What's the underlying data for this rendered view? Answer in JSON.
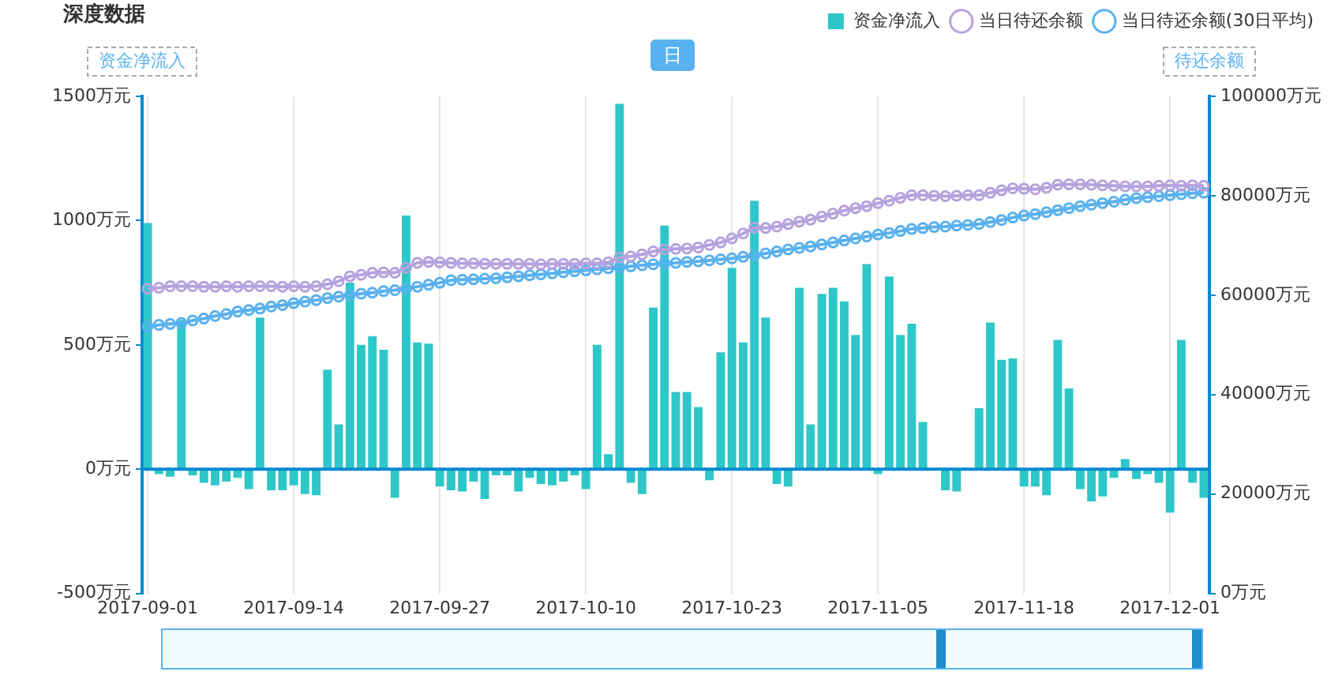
{
  "chart_data": {
    "type": "bar",
    "title": "深度数据",
    "ylabel": "资金净流入",
    "y2label": "待还余额",
    "annotations": [
      "日"
    ],
    "categories": [
      "2017-09-01",
      null,
      null,
      null,
      null,
      null,
      null,
      null,
      null,
      null,
      null,
      null,
      null,
      "2017-09-14",
      null,
      null,
      null,
      null,
      null,
      null,
      null,
      null,
      null,
      null,
      null,
      null,
      "2017-09-27",
      null,
      null,
      null,
      null,
      null,
      null,
      null,
      null,
      null,
      null,
      null,
      null,
      "2017-10-10",
      null,
      null,
      null,
      null,
      null,
      null,
      null,
      null,
      null,
      null,
      null,
      null,
      "2017-10-23",
      null,
      null,
      null,
      null,
      null,
      null,
      null,
      null,
      null,
      null,
      null,
      null,
      "2017-11-05",
      null,
      null,
      null,
      null,
      null,
      null,
      null,
      null,
      null,
      null,
      null,
      null,
      "2017-11-18",
      null,
      null,
      null,
      null,
      null,
      null,
      null,
      null,
      null,
      null,
      null,
      null,
      "2017-12-01",
      null,
      null,
      null
    ],
    "series": [
      {
        "name": "资金净流入",
        "color": "#2ec7c9",
        "values": [
          990,
          -20,
          -30,
          600,
          -25,
          -55,
          -65,
          -50,
          -35,
          -80,
          610,
          -85,
          -85,
          -65,
          -100,
          -105,
          400,
          180,
          750,
          500,
          535,
          480,
          -115,
          1020,
          510,
          505,
          -70,
          -85,
          -90,
          -50,
          -120,
          -25,
          -25,
          -90,
          -35,
          -60,
          -65,
          -50,
          -25,
          -80,
          500,
          60,
          1470,
          -55,
          -100,
          650,
          980,
          310,
          310,
          250,
          -45,
          470,
          810,
          510,
          1080,
          610,
          -60,
          -70,
          730,
          180,
          705,
          730,
          675,
          540,
          825,
          -20,
          775,
          540,
          585,
          190,
          0,
          -85,
          -90,
          0,
          245,
          590,
          440,
          445,
          -70,
          -70,
          -105,
          520,
          325,
          -80,
          -130,
          -110,
          -35,
          40,
          -40,
          -20,
          -55,
          -175,
          520,
          -55,
          -115
        ]
      },
      {
        "name": "当日待还余额",
        "type": "line",
        "axis": "y2",
        "color": "#b6a2de",
        "values": [
          61300,
          61500,
          61800,
          61800,
          61800,
          61700,
          61700,
          61800,
          61700,
          61800,
          61800,
          61800,
          61700,
          61800,
          61700,
          61800,
          62200,
          62800,
          63800,
          64100,
          64500,
          64600,
          64500,
          65500,
          66500,
          66700,
          66600,
          66500,
          66400,
          66400,
          66300,
          66300,
          66300,
          66300,
          66300,
          66200,
          66300,
          66300,
          66300,
          66400,
          66400,
          66600,
          67600,
          67800,
          68200,
          68800,
          69200,
          69300,
          69400,
          69600,
          70100,
          70600,
          71400,
          72400,
          73600,
          73500,
          73800,
          74300,
          74800,
          75200,
          75800,
          76400,
          77000,
          77500,
          77900,
          78500,
          79000,
          79600,
          80100,
          80100,
          80000,
          79900,
          80000,
          80100,
          80100,
          80600,
          81100,
          81500,
          81400,
          81300,
          81600,
          82200,
          82300,
          82300,
          82200,
          82100,
          82000,
          81900,
          81900,
          81900,
          82000,
          82100,
          82000,
          82100,
          82000
        ]
      },
      {
        "name": "当日待还余额(30日平均)",
        "type": "line",
        "axis": "y2",
        "color": "#5ab1ef",
        "values": [
          53700,
          54000,
          54200,
          54400,
          54900,
          55300,
          55800,
          56200,
          56700,
          57000,
          57300,
          57700,
          58000,
          58400,
          58700,
          59000,
          59400,
          59700,
          60000,
          60300,
          60500,
          60800,
          61000,
          61300,
          61700,
          62100,
          62500,
          63000,
          63100,
          63200,
          63300,
          63400,
          63600,
          63800,
          64000,
          64200,
          64400,
          64600,
          64800,
          65000,
          65200,
          65400,
          65600,
          65800,
          66000,
          66200,
          66400,
          66500,
          66700,
          66800,
          67000,
          67200,
          67400,
          67700,
          68000,
          68400,
          68800,
          69200,
          69500,
          69800,
          70200,
          70600,
          71000,
          71400,
          71800,
          72200,
          72500,
          72900,
          73300,
          73500,
          73700,
          73800,
          74000,
          74100,
          74300,
          74700,
          75100,
          75600,
          76000,
          76300,
          76700,
          77100,
          77500,
          77900,
          78200,
          78500,
          78800,
          79200,
          79500,
          79700,
          79900,
          80100,
          80300,
          80500,
          80600
        ]
      }
    ],
    "ylim": [
      -500,
      1500
    ],
    "yticks": [
      {
        "value": -500,
        "label": "-500万元"
      },
      {
        "value": 0,
        "label": "0万元"
      },
      {
        "value": 500,
        "label": "500万元"
      },
      {
        "value": 1000,
        "label": "1000万元"
      },
      {
        "value": 1500,
        "label": "1500万元"
      }
    ],
    "y2lim": [
      0,
      100000
    ],
    "y2ticks": [
      {
        "value": 0,
        "label": "0万元"
      },
      {
        "value": 20000,
        "label": "20000万元"
      },
      {
        "value": 40000,
        "label": "40000万元"
      },
      {
        "value": 60000,
        "label": "60000万元"
      },
      {
        "value": 80000,
        "label": "80000万元"
      },
      {
        "value": 100000,
        "label": "100000万元"
      }
    ],
    "ref_lines": [
      {
        "axis": "y",
        "value": 0,
        "color": "#008acd"
      }
    ],
    "grid": "x",
    "legend": "top right",
    "marker": "circle",
    "line_style": "solid"
  }
}
